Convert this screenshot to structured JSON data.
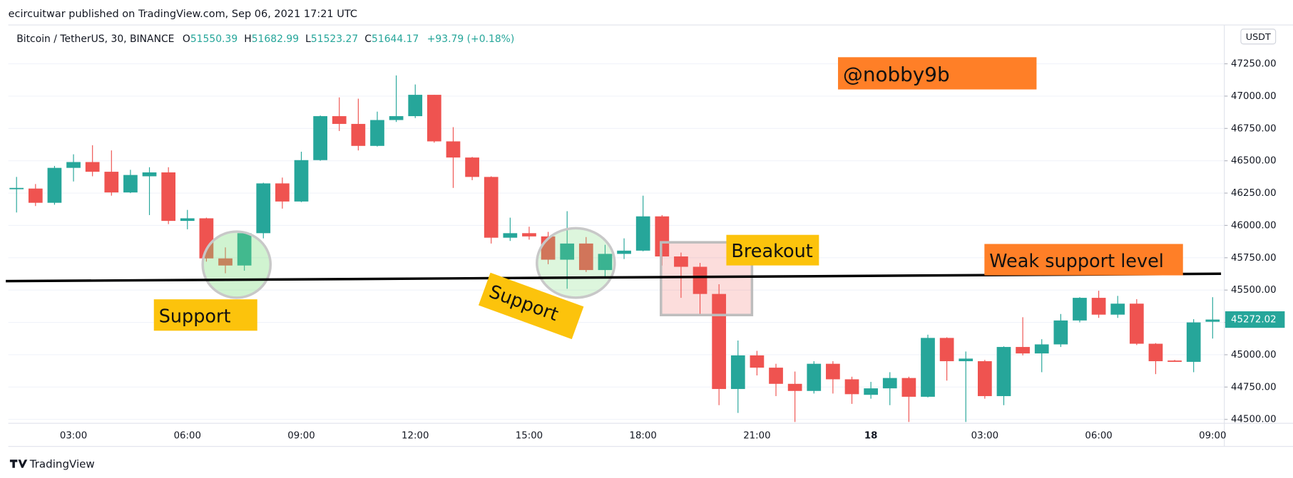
{
  "published_by": "ecircuitwar published on TradingView.com, Sep 06, 2021 17:21 UTC",
  "footer": "TradingView",
  "chart_data": {
    "type": "candlestick",
    "symbol": "Bitcoin / TetherUS, 30, BINANCE",
    "ohlc_legend": [
      {
        "label": "O",
        "value": "51550.39"
      },
      {
        "label": "H",
        "value": "51682.99"
      },
      {
        "label": "L",
        "value": "51523.27"
      },
      {
        "label": "C",
        "value": "51644.17"
      }
    ],
    "change": "+93.79 (+0.18%)",
    "currency": "USDT",
    "up_color": "#26a69a",
    "down_color": "#ef5350",
    "grid": true,
    "categories": [
      null,
      null,
      null,
      "03:00",
      null,
      null,
      null,
      null,
      null,
      "06:00",
      null,
      null,
      null,
      null,
      null,
      "09:00",
      null,
      null,
      null,
      null,
      null,
      "12:00",
      null,
      null,
      null,
      null,
      null,
      "15:00",
      null,
      null,
      null,
      null,
      null,
      "18:00",
      null,
      null,
      null,
      null,
      null,
      "21:00",
      null,
      null,
      null,
      null,
      null,
      "18",
      null,
      null,
      null,
      null,
      null,
      "03:00",
      null,
      null,
      null,
      null,
      null,
      "06:00",
      null,
      null,
      null,
      null,
      null,
      "09:00"
    ],
    "open": [
      46280,
      46285,
      46175,
      46445,
      46490,
      46415,
      46255,
      46380,
      46410,
      46035,
      46055,
      45745,
      45690,
      45940,
      46325,
      46185,
      46505,
      46845,
      46785,
      46615,
      46815,
      46845,
      47010,
      46650,
      46525,
      46375,
      45905,
      45940,
      45915,
      45735,
      45860,
      45655,
      45780,
      45805,
      46070,
      45760,
      45680,
      45470,
      44735,
      44995,
      44900,
      44775,
      44720,
      44930,
      44810,
      44690,
      44740,
      44820,
      44675,
      45130,
      44950,
      44950,
      44680,
      45060,
      45010,
      45080,
      45265,
      45440,
      45310,
      45395,
      45085,
      44955,
      44945,
      45255
    ],
    "high": [
      46375,
      46320,
      46460,
      46550,
      46620,
      46580,
      46430,
      46450,
      46450,
      46120,
      46060,
      45830,
      45950,
      46330,
      46370,
      46570,
      46850,
      46990,
      46980,
      46880,
      47160,
      47090,
      47010,
      46760,
      46530,
      46380,
      46060,
      45990,
      45950,
      46110,
      45910,
      45850,
      45900,
      46230,
      46080,
      45790,
      45710,
      45545,
      45110,
      45030,
      44930,
      44870,
      44950,
      44950,
      44830,
      44790,
      44865,
      44830,
      45155,
      45135,
      45025,
      44960,
      45065,
      45290,
      45120,
      45315,
      45445,
      45495,
      45455,
      45430,
      45090,
      44960,
      45275,
      45445
    ],
    "low": [
      46100,
      46150,
      46160,
      46340,
      46380,
      46230,
      46250,
      46080,
      46010,
      45970,
      45720,
      45630,
      45650,
      45900,
      46130,
      46180,
      46500,
      46730,
      46580,
      46610,
      46800,
      46830,
      46640,
      46290,
      46350,
      45860,
      45880,
      45890,
      45700,
      45510,
      45640,
      45600,
      45740,
      45800,
      45690,
      45440,
      45300,
      44610,
      44550,
      44840,
      44680,
      44480,
      44700,
      44700,
      44620,
      44660,
      44610,
      44480,
      44670,
      44800,
      44480,
      44660,
      44610,
      44995,
      44865,
      45060,
      45250,
      45285,
      45285,
      45075,
      44850,
      44945,
      44865,
      45125
    ],
    "close": [
      46290,
      46175,
      46445,
      46490,
      46415,
      46255,
      46390,
      46410,
      46035,
      46055,
      45745,
      45690,
      45940,
      46325,
      46185,
      46505,
      46845,
      46785,
      46615,
      46815,
      46845,
      47010,
      46650,
      46525,
      46375,
      45905,
      45940,
      45915,
      45735,
      45860,
      45655,
      45780,
      45805,
      46070,
      45760,
      45680,
      45470,
      44735,
      44995,
      44900,
      44775,
      44720,
      44930,
      44810,
      44695,
      44740,
      44820,
      44675,
      45130,
      44950,
      44970,
      44680,
      45060,
      45010,
      45080,
      45265,
      45440,
      45310,
      45395,
      45085,
      44950,
      44945,
      45250,
      45272.02
    ],
    "last_price": 45272.02,
    "ylim": [
      44470,
      47550
    ],
    "yticks": [
      {
        "value": 44500,
        "label": "44500.00"
      },
      {
        "value": 44750,
        "label": "44750.00"
      },
      {
        "value": 45000,
        "label": "45000.00"
      },
      {
        "value": 45250,
        "label": "45250.00"
      },
      {
        "value": 45500,
        "label": "45500.00"
      },
      {
        "value": 45750,
        "label": "45750.00"
      },
      {
        "value": 46000,
        "label": "46000.00"
      },
      {
        "value": 46250,
        "label": "46250.00"
      },
      {
        "value": 46500,
        "label": "46500.00"
      },
      {
        "value": 46750,
        "label": "46750.00"
      },
      {
        "value": 47000,
        "label": "47000.00"
      },
      {
        "value": 47250,
        "label": "47250.00"
      }
    ],
    "annotations": [
      "@nobby9b",
      "Support",
      "Support",
      "Breakout",
      "Weak support level"
    ]
  }
}
